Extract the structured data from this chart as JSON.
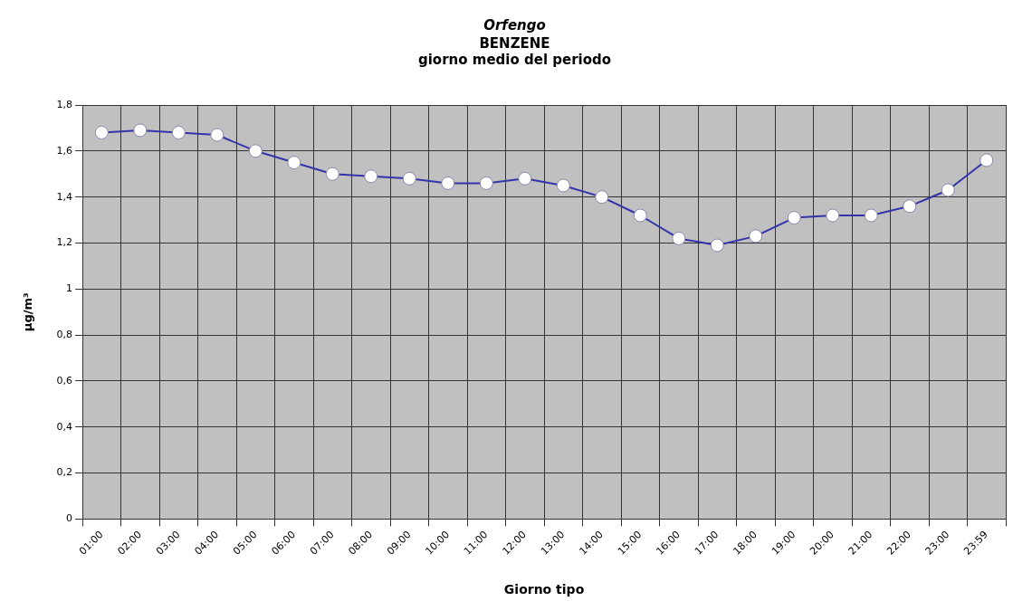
{
  "chart_data": {
    "type": "line",
    "title": "Orfengo",
    "subtitle": "BENZENE\ngiorno medio del periodo",
    "xlabel": "Giorno tipo",
    "ylabel": "µg/m³",
    "categories": [
      "01:00",
      "02:00",
      "03:00",
      "04:00",
      "05:00",
      "06:00",
      "07:00",
      "08:00",
      "09:00",
      "10:00",
      "11:00",
      "12:00",
      "13:00",
      "14:00",
      "15:00",
      "16:00",
      "17:00",
      "18:00",
      "19:00",
      "20:00",
      "21:00",
      "22:00",
      "23:00",
      "23:59"
    ],
    "series": [
      {
        "color": "#3333aa",
        "values": [
          1.68,
          1.69,
          1.68,
          1.67,
          1.6,
          1.55,
          1.5,
          1.49,
          1.48,
          1.46,
          1.46,
          1.48,
          1.45,
          1.4,
          1.32,
          1.22,
          1.19,
          1.23,
          1.31,
          1.32,
          1.32,
          1.36,
          1.43,
          1.56
        ]
      }
    ],
    "ylim": [
      0,
      1.8
    ],
    "yticks": [
      0,
      {
        "value": 0.2,
        "label": "0,2"
      },
      {
        "value": 0.4,
        "label": "0,4"
      },
      {
        "value": 0.6,
        "label": "0,6"
      },
      {
        "value": 0.8,
        "label": "0,8"
      },
      1,
      {
        "value": 1.2,
        "label": "1,2"
      },
      {
        "value": 1.4,
        "label": "1,4"
      },
      {
        "value": 1.6,
        "label": "1,6"
      },
      {
        "value": 1.8,
        "label": "1,8"
      }
    ],
    "grid": true,
    "legend": false,
    "marker": "circle",
    "line_style": "solid"
  }
}
